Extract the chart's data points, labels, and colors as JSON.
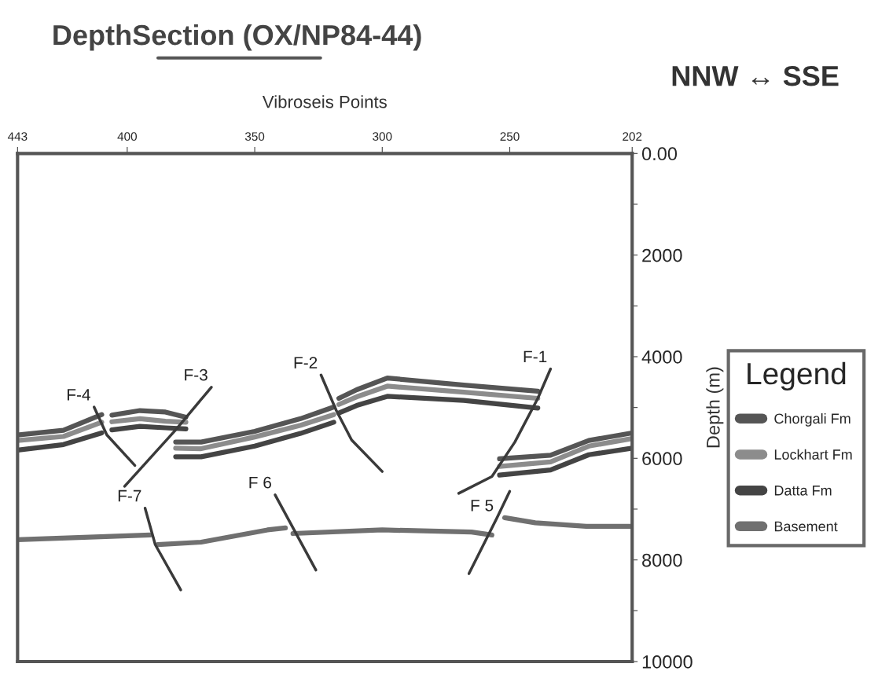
{
  "chart_data": {
    "type": "line",
    "title": "DepthSection (OX/NP84-44)",
    "xlabel": "Vibroseis Points",
    "ylabel": "Depth (m)",
    "legend_title": "Legend",
    "annotations": [
      "NNW ↔ SSE",
      {
        "text": "F-4",
        "x": 413,
        "y": 4990
      },
      {
        "text": "F-3",
        "x": 367,
        "y": 4600
      },
      {
        "text": "F-2",
        "x": 324,
        "y": 4360
      },
      {
        "text": "F-1",
        "x": 234,
        "y": 4240
      },
      {
        "text": "F 5",
        "x": 255,
        "y": 7170
      },
      {
        "text": "F 6",
        "x": 342,
        "y": 6720
      },
      {
        "text": "F-7",
        "x": 393,
        "y": 6980
      }
    ],
    "xlim": [
      443,
      202
    ],
    "xticks": [
      443,
      400,
      350,
      300,
      250,
      202
    ],
    "ylim": [
      10000,
      0
    ],
    "yticks": [
      {
        "value": 0,
        "label": "0.00"
      },
      {
        "value": 1000,
        "label": null
      },
      2000,
      {
        "value": 3000,
        "label": null
      },
      4000,
      {
        "value": 5000,
        "label": null
      },
      6000,
      {
        "value": 7000,
        "label": null
      },
      8000,
      {
        "value": 9000,
        "label": null
      },
      10000
    ],
    "grid": false,
    "legend": "right",
    "marker": "none",
    "line_style": "solid",
    "series": [
      {
        "name": "Chorgali Fm",
        "color": "#555555",
        "x": [
          443,
          425,
          410,
          408,
          406,
          395,
          385,
          377,
          379,
          381,
          371,
          350,
          332,
          319,
          318,
          317,
          310,
          298,
          268,
          239,
          246,
          254,
          234,
          219,
          202
        ],
        "values": [
          5540,
          5450,
          5140,
          null,
          5150,
          5060,
          5090,
          5190,
          null,
          5680,
          5680,
          5470,
          5220,
          4990,
          null,
          4820,
          4650,
          4420,
          4560,
          4680,
          null,
          6010,
          5940,
          5650,
          5500
        ]
      },
      {
        "name": "Lockhart Fm",
        "color": "#8c8c8c",
        "x": [
          443,
          425,
          410,
          408,
          406,
          395,
          385,
          377,
          379,
          381,
          371,
          350,
          332,
          319,
          318,
          317,
          310,
          298,
          268,
          239,
          246,
          254,
          234,
          219,
          202
        ],
        "values": [
          5650,
          5570,
          5290,
          null,
          5280,
          5220,
          5270,
          5290,
          null,
          5800,
          5810,
          5580,
          5350,
          5140,
          null,
          4940,
          4790,
          4580,
          4700,
          4820,
          null,
          6160,
          6070,
          5760,
          5610
        ]
      },
      {
        "name": "Datta Fm",
        "color": "#444444",
        "x": [
          443,
          425,
          410,
          408,
          406,
          395,
          385,
          377,
          379,
          381,
          371,
          350,
          332,
          319,
          318,
          317,
          310,
          298,
          268,
          239,
          246,
          254,
          234,
          219,
          202
        ],
        "values": [
          5840,
          5730,
          5500,
          null,
          5440,
          5370,
          5400,
          5420,
          null,
          5970,
          5970,
          5760,
          5510,
          5290,
          null,
          5110,
          4960,
          4780,
          4860,
          5010,
          null,
          6330,
          6230,
          5930,
          5800
        ]
      },
      {
        "name": "Basement",
        "color": "#707070",
        "x": [
          443,
          391,
          390,
          388,
          371,
          345,
          338,
          337,
          335,
          300,
          265,
          257,
          255,
          252,
          240,
          220,
          202
        ],
        "values": [
          7600,
          7510,
          null,
          7700,
          7650,
          7410,
          7370,
          null,
          7480,
          7410,
          7450,
          7510,
          null,
          7170,
          7270,
          7340,
          7340
        ]
      },
      {
        "color": "#3a3a3a",
        "x": [
          413,
          408,
          397
        ],
        "values": [
          4990,
          5540,
          6140
        ]
      },
      {
        "color": "#3a3a3a",
        "x": [
          367,
          381,
          401
        ],
        "values": [
          4600,
          5440,
          6550
        ]
      },
      {
        "color": "#3a3a3a",
        "x": [
          324,
          318,
          312,
          300
        ],
        "values": [
          4360,
          5060,
          5640,
          6260
        ]
      },
      {
        "color": "#3a3a3a",
        "x": [
          234,
          239,
          248,
          257,
          270
        ],
        "values": [
          4240,
          4820,
          5680,
          6360,
          6690
        ]
      },
      {
        "color": "#3a3a3a",
        "x": [
          250,
          255,
          266
        ],
        "values": [
          6650,
          7170,
          8270
        ]
      },
      {
        "color": "#3a3a3a",
        "x": [
          342,
          326
        ],
        "values": [
          6720,
          8200
        ]
      },
      {
        "color": "#3a3a3a",
        "x": [
          393,
          389,
          379
        ],
        "values": [
          6980,
          7700,
          8590
        ]
      }
    ]
  }
}
